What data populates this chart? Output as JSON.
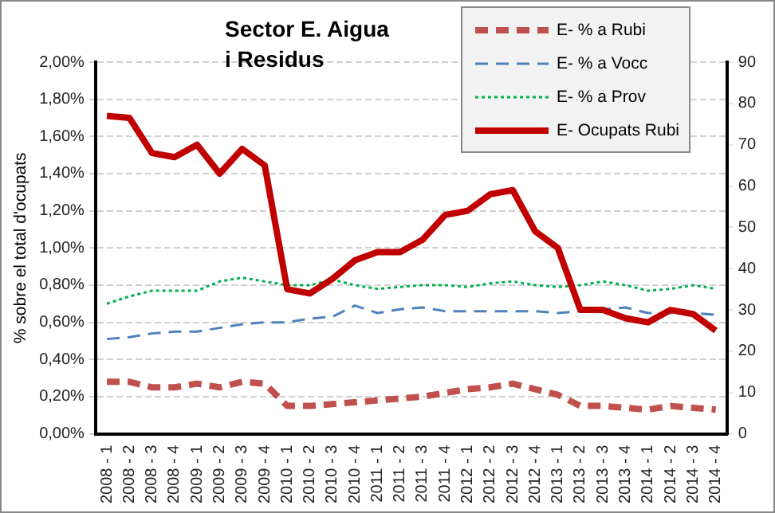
{
  "chart_data": {
    "type": "line",
    "title": "Sector E. Aigua\ni Residus",
    "ylabel": "% sobre el total d'ocupats",
    "categories": [
      "2008 - 1",
      "2008 - 2",
      "2008 - 3",
      "2008 - 4",
      "2009 - 1",
      "2009 - 2",
      "2009 - 3",
      "2009 - 4",
      "2010 - 1",
      "2010 - 2",
      "2010 - 3",
      "2010 - 4",
      "2011 - 1",
      "2011 - 2",
      "2011 - 3",
      "2011 - 4",
      "2012 - 1",
      "2012 - 2",
      "2012 - 3",
      "2012 - 4",
      "2013 - 1",
      "2013 - 2",
      "2013 - 3",
      "2013 - 4",
      "2014 - 1",
      "2014 - 2",
      "2014 - 3",
      "2014 - 4"
    ],
    "series": [
      {
        "name": "E- % a Rubi",
        "color": "#c0504d",
        "line_style": "dashed",
        "values": [
          0.28,
          0.28,
          0.25,
          0.25,
          0.27,
          0.25,
          0.28,
          0.27,
          0.15,
          0.15,
          0.16,
          0.17,
          0.18,
          0.19,
          0.2,
          0.22,
          0.24,
          0.25,
          0.27,
          0.24,
          0.21,
          0.15,
          0.15,
          0.14,
          0.13,
          0.15,
          0.14,
          0.13
        ]
      },
      {
        "name": "E- % a Vocc",
        "color": "#4f81bd",
        "line_style": "dashed",
        "values": [
          0.51,
          0.52,
          0.54,
          0.55,
          0.55,
          0.57,
          0.59,
          0.6,
          0.6,
          0.62,
          0.63,
          0.69,
          0.65,
          0.67,
          0.68,
          0.66,
          0.66,
          0.66,
          0.66,
          0.66,
          0.65,
          0.66,
          0.67,
          0.68,
          0.65,
          0.65,
          0.65,
          0.64
        ]
      },
      {
        "name": "E- % a Prov",
        "color": "#00b050",
        "line_style": "dotted",
        "values": [
          0.7,
          0.74,
          0.77,
          0.77,
          0.77,
          0.82,
          0.84,
          0.82,
          0.8,
          0.8,
          0.83,
          0.8,
          0.78,
          0.79,
          0.8,
          0.8,
          0.79,
          0.81,
          0.82,
          0.8,
          0.79,
          0.8,
          0.82,
          0.8,
          0.77,
          0.78,
          0.8,
          0.78
        ]
      },
      {
        "name": "E- Ocupats Rubi",
        "color": "#c00000",
        "line_style": "solid",
        "axis": "y2",
        "values": [
          77,
          76.5,
          68,
          67,
          70,
          63,
          69,
          65,
          35,
          34,
          37.5,
          42,
          44,
          44,
          47,
          53,
          54,
          58,
          59,
          49,
          45,
          30,
          30,
          28,
          27,
          30,
          29,
          25
        ]
      }
    ],
    "ylim": [
      0,
      2
    ],
    "yticks": [
      {
        "value": 0,
        "label": "0,00%"
      },
      {
        "value": 0.2,
        "label": "0,20%"
      },
      {
        "value": 0.4,
        "label": "0,40%"
      },
      {
        "value": 0.6,
        "label": "0,60%"
      },
      {
        "value": 0.8,
        "label": "0,80%"
      },
      {
        "value": 1,
        "label": "1,00%"
      },
      {
        "value": 1.2,
        "label": "1,20%"
      },
      {
        "value": 1.4,
        "label": "1,40%"
      },
      {
        "value": 1.6,
        "label": "1,60%"
      },
      {
        "value": 1.8,
        "label": "1,80%"
      },
      {
        "value": 2,
        "label": "2,00%"
      }
    ],
    "y2lim": [
      0,
      90
    ],
    "y2ticks": [
      0,
      10,
      20,
      30,
      40,
      50,
      60,
      70,
      80,
      90
    ],
    "grid": "y",
    "legend": "top right",
    "marker": "none"
  }
}
